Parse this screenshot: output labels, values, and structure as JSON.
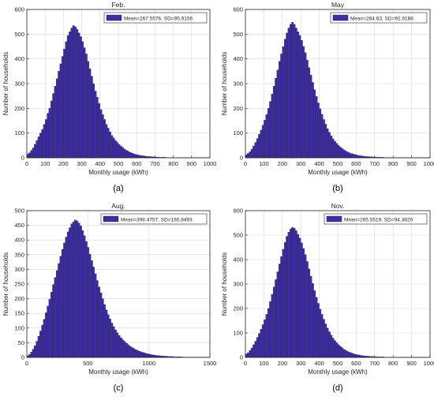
{
  "colors": {
    "bar": "#3d2f9e",
    "bar_stroke": "#1e1560",
    "grid": "#d9d9d9",
    "axis": "#262626",
    "text": "#262626"
  },
  "chart_data": [
    {
      "type": "bar",
      "panel_label": "(a)",
      "title": "Feb.",
      "xlabel": "Monthly usage (kWh)",
      "ylabel": "Number of households",
      "legend": "Mean=267.5576, SD=95.9156",
      "legend_position": "top-right",
      "grid": true,
      "xlim": [
        0,
        1000
      ],
      "ylim": [
        0,
        600
      ],
      "xticks": [
        0,
        100,
        200,
        300,
        400,
        500,
        600,
        700,
        800,
        900,
        1000
      ],
      "yticks": [
        0,
        100,
        200,
        300,
        400,
        500,
        600
      ],
      "bin_width": 10,
      "bins_start": 0,
      "values": [
        15,
        20,
        30,
        40,
        55,
        70,
        85,
        100,
        115,
        135,
        155,
        180,
        200,
        230,
        260,
        290,
        320,
        350,
        380,
        410,
        440,
        470,
        495,
        510,
        525,
        535,
        530,
        520,
        505,
        490,
        470,
        445,
        420,
        390,
        360,
        330,
        300,
        270,
        245,
        220,
        195,
        175,
        155,
        135,
        120,
        105,
        90,
        80,
        70,
        62,
        54,
        47,
        41,
        35,
        30,
        26,
        22,
        19,
        16,
        14,
        12,
        10,
        9,
        8,
        7,
        6,
        5,
        5,
        4,
        4,
        3,
        3,
        2,
        2,
        2,
        2,
        1,
        1,
        1,
        1,
        1,
        1,
        1,
        1,
        1,
        1,
        1,
        1,
        1,
        1,
        1,
        1,
        1,
        1,
        1,
        1,
        1,
        1,
        1,
        1
      ]
    },
    {
      "type": "bar",
      "panel_label": "(b)",
      "title": "May",
      "xlabel": "Monthly usage (kWh)",
      "ylabel": "Number of households",
      "legend": "Mean=264.63, SD=92.9186",
      "legend_position": "top-right",
      "grid": true,
      "xlim": [
        0,
        1000
      ],
      "ylim": [
        0,
        600
      ],
      "xticks": [
        0,
        100,
        200,
        300,
        400,
        500,
        600,
        700,
        800,
        900,
        1000
      ],
      "yticks": [
        0,
        100,
        200,
        300,
        400,
        500,
        600
      ],
      "bin_width": 10,
      "bins_start": 0,
      "values": [
        12,
        18,
        25,
        35,
        48,
        62,
        78,
        95,
        112,
        132,
        152,
        175,
        200,
        228,
        258,
        290,
        322,
        355,
        390,
        420,
        450,
        480,
        505,
        525,
        540,
        548,
        540,
        525,
        510,
        495,
        475,
        450,
        425,
        395,
        365,
        335,
        305,
        275,
        248,
        222,
        198,
        176,
        155,
        136,
        118,
        103,
        89,
        77,
        67,
        58,
        50,
        43,
        37,
        32,
        27,
        23,
        20,
        17,
        15,
        13,
        11,
        9,
        8,
        7,
        6,
        5,
        5,
        4,
        4,
        3,
        3,
        2,
        2,
        2,
        2,
        1,
        1,
        1,
        1,
        1,
        1,
        1,
        1,
        1,
        1,
        1,
        1,
        1,
        1,
        1,
        1,
        1,
        1,
        1,
        1,
        1,
        1,
        1,
        1,
        1
      ]
    },
    {
      "type": "bar",
      "panel_label": "(c)",
      "title": "Aug.",
      "xlabel": "Monthly usage (kWh)",
      "ylabel": "Number of households",
      "legend": "Mean=398.4757, SD=165.8493",
      "legend_position": "top-right",
      "grid": true,
      "xlim": [
        0,
        1500
      ],
      "ylim": [
        0,
        500
      ],
      "xticks": [
        0,
        500,
        1000,
        1500
      ],
      "yticks": [
        0,
        50,
        100,
        150,
        200,
        250,
        300,
        350,
        400,
        450,
        500
      ],
      "bin_width": 15,
      "bins_start": 0,
      "values": [
        5,
        10,
        18,
        28,
        40,
        55,
        72,
        90,
        110,
        130,
        152,
        175,
        198,
        222,
        248,
        272,
        296,
        320,
        345,
        368,
        390,
        410,
        428,
        442,
        455,
        462,
        468,
        465,
        458,
        448,
        432,
        415,
        395,
        375,
        352,
        330,
        308,
        285,
        262,
        240,
        220,
        200,
        180,
        162,
        146,
        131,
        117,
        105,
        94,
        84,
        75,
        67,
        60,
        54,
        48,
        43,
        38,
        34,
        30,
        27,
        24,
        21,
        19,
        17,
        15,
        13,
        12,
        10,
        9,
        8,
        7,
        6,
        6,
        5,
        5,
        4,
        4,
        3,
        3,
        3,
        2,
        2,
        2,
        2,
        2,
        1,
        1,
        1,
        1,
        1,
        1,
        1,
        1,
        1,
        1,
        1,
        1,
        1,
        1,
        1
      ]
    },
    {
      "type": "bar",
      "panel_label": "(d)",
      "title": "Nov.",
      "xlabel": "Monthly usage (kWh)",
      "ylabel": "Number of households",
      "legend": "Mean=265.5519, SD=94.3829",
      "legend_position": "top-right",
      "grid": true,
      "xlim": [
        0,
        1000
      ],
      "ylim": [
        0,
        600
      ],
      "xticks": [
        0,
        100,
        200,
        300,
        400,
        500,
        600,
        700,
        800,
        900,
        1000
      ],
      "yticks": [
        0,
        100,
        200,
        300,
        400,
        500,
        600
      ],
      "bin_width": 10,
      "bins_start": 0,
      "values": [
        14,
        19,
        28,
        38,
        52,
        66,
        82,
        98,
        115,
        134,
        154,
        176,
        200,
        228,
        258,
        288,
        318,
        350,
        382,
        412,
        442,
        470,
        495,
        512,
        525,
        532,
        528,
        518,
        503,
        488,
        468,
        445,
        420,
        392,
        362,
        332,
        302,
        273,
        246,
        221,
        197,
        176,
        156,
        137,
        120,
        105,
        91,
        79,
        69,
        60,
        52,
        45,
        39,
        33,
        28,
        24,
        21,
        18,
        15,
        13,
        11,
        10,
        8,
        7,
        6,
        5,
        5,
        4,
        4,
        3,
        3,
        2,
        2,
        2,
        2,
        1,
        1,
        1,
        1,
        1,
        1,
        1,
        1,
        1,
        1,
        1,
        1,
        1,
        1,
        1,
        1,
        1,
        1,
        1,
        1,
        1,
        1,
        1,
        1,
        1
      ]
    }
  ]
}
